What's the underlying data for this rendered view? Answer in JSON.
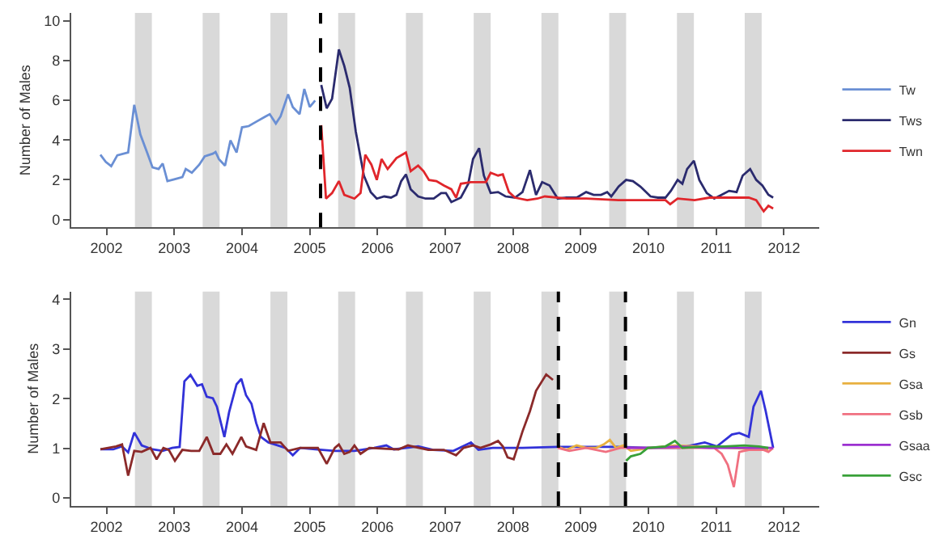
{
  "chart_data": [
    {
      "type": "line",
      "ylabel": "Number of Males",
      "xlim": [
        2001.48,
        2012.52
      ],
      "xticks": [
        2002,
        2003,
        2004,
        2005,
        2006,
        2007,
        2008,
        2009,
        2010,
        2011,
        2012
      ],
      "ylim": [
        -0.4,
        10.4
      ],
      "yticks": [
        0,
        2,
        4,
        6,
        8,
        10
      ],
      "grid": false,
      "legend": "right",
      "series": [
        {
          "name": "Tw",
          "color": "#6a8fd4",
          "x": [
            2001.91,
            2001.99,
            2002.07,
            2002.16,
            2002.32,
            2002.41,
            2002.5,
            2002.6,
            2002.68,
            2002.77,
            2002.83,
            2002.9,
            2003.0,
            2003.12,
            2003.17,
            2003.26,
            2003.37,
            2003.45,
            2003.57,
            2003.61,
            2003.66,
            2003.75,
            2003.83,
            2003.92,
            2004.0,
            2004.1,
            2004.21,
            2004.35,
            2004.41,
            2004.5,
            2004.57,
            2004.68,
            2004.75,
            2004.85,
            2004.92,
            2005.0,
            2005.08
          ],
          "values": [
            3.26,
            2.9,
            2.68,
            3.23,
            3.37,
            5.77,
            4.28,
            3.37,
            2.62,
            2.54,
            2.82,
            1.93,
            2.02,
            2.13,
            2.54,
            2.35,
            2.76,
            3.18,
            3.31,
            3.4,
            3.04,
            2.71,
            3.98,
            3.37,
            4.64,
            4.7,
            4.92,
            5.19,
            5.3,
            4.83,
            5.19,
            6.3,
            5.66,
            5.3,
            6.57,
            5.66,
            5.99
          ]
        },
        {
          "name": "Tws",
          "color": "#2b2b6e",
          "x": [
            2005.17,
            2005.25,
            2005.33,
            2005.43,
            2005.51,
            2005.59,
            2005.68,
            2005.8,
            2005.9,
            2005.99,
            2006.1,
            2006.2,
            2006.28,
            2006.35,
            2006.42,
            2006.49,
            2006.6,
            2006.71,
            2006.83,
            2006.94,
            2007.01,
            2007.09,
            2007.23,
            2007.34,
            2007.41,
            2007.5,
            2007.57,
            2007.67,
            2007.78,
            2007.89,
            2008.03,
            2008.14,
            2008.25,
            2008.34,
            2008.43,
            2008.54,
            2008.66,
            2008.79,
            2008.94,
            2009.08,
            2009.19,
            2009.3,
            2009.39,
            2009.45,
            2009.56,
            2009.67,
            2009.77,
            2009.88,
            2010.03,
            2010.14,
            2010.25,
            2010.33,
            2010.43,
            2010.5,
            2010.57,
            2010.67,
            2010.75,
            2010.86,
            2010.97,
            2011.08,
            2011.19,
            2011.3,
            2011.39,
            2011.5,
            2011.59,
            2011.68,
            2011.77,
            2011.84
          ],
          "values": [
            6.77,
            5.6,
            6.08,
            8.56,
            7.73,
            6.63,
            4.42,
            2.2,
            1.38,
            1.05,
            1.16,
            1.1,
            1.24,
            1.93,
            2.27,
            1.52,
            1.16,
            1.05,
            1.05,
            1.33,
            1.33,
            0.88,
            1.1,
            1.8,
            3.04,
            3.59,
            2.21,
            1.33,
            1.38,
            1.16,
            1.1,
            1.38,
            2.49,
            1.24,
            1.88,
            1.71,
            1.05,
            1.1,
            1.1,
            1.38,
            1.24,
            1.24,
            1.38,
            1.16,
            1.66,
            1.99,
            1.93,
            1.66,
            1.16,
            1.1,
            1.1,
            1.44,
            1.99,
            1.8,
            2.54,
            2.96,
            1.99,
            1.33,
            1.05,
            1.24,
            1.44,
            1.38,
            2.21,
            2.54,
            1.99,
            1.71,
            1.24,
            1.1
          ]
        },
        {
          "name": "Twn",
          "color": "#e0262b",
          "x": [
            2005.17,
            2005.24,
            2005.33,
            2005.43,
            2005.51,
            2005.66,
            2005.75,
            2005.82,
            2005.91,
            2005.99,
            2006.06,
            2006.15,
            2006.28,
            2006.42,
            2006.49,
            2006.6,
            2006.68,
            2006.76,
            2006.87,
            2006.98,
            2007.09,
            2007.16,
            2007.23,
            2007.38,
            2007.6,
            2007.67,
            2007.78,
            2007.85,
            2007.94,
            2008.03,
            2008.21,
            2008.36,
            2008.47,
            2008.79,
            2009.08,
            2009.56,
            2009.74,
            2010.25,
            2010.32,
            2010.43,
            2010.68,
            2010.9,
            2011.19,
            2011.48,
            2011.59,
            2011.7,
            2011.77,
            2011.84
          ],
          "values": [
            4.75,
            1.05,
            1.33,
            1.93,
            1.24,
            1.05,
            1.33,
            3.26,
            2.76,
            1.99,
            3.04,
            2.54,
            3.09,
            3.37,
            2.43,
            2.71,
            2.43,
            1.99,
            1.93,
            1.71,
            1.52,
            1.1,
            1.8,
            1.88,
            1.88,
            2.35,
            2.21,
            2.27,
            1.38,
            1.1,
            0.97,
            1.05,
            1.16,
            1.05,
            1.05,
            0.97,
            0.97,
            0.97,
            0.77,
            1.05,
            0.97,
            1.1,
            1.1,
            1.1,
            0.97,
            0.41,
            0.69,
            0.55
          ]
        }
      ],
      "bands": [
        {
          "axis": "x",
          "from": 2002.42,
          "to": 2002.67,
          "color": "#d9d9d9"
        },
        {
          "axis": "x",
          "from": 2003.42,
          "to": 2003.67,
          "color": "#d9d9d9"
        },
        {
          "axis": "x",
          "from": 2004.42,
          "to": 2004.67,
          "color": "#d9d9d9"
        },
        {
          "axis": "x",
          "from": 2005.42,
          "to": 2005.67,
          "color": "#d9d9d9"
        },
        {
          "axis": "x",
          "from": 2006.42,
          "to": 2006.67,
          "color": "#d9d9d9"
        },
        {
          "axis": "x",
          "from": 2007.42,
          "to": 2007.67,
          "color": "#d9d9d9"
        },
        {
          "axis": "x",
          "from": 2008.42,
          "to": 2008.67,
          "color": "#d9d9d9"
        },
        {
          "axis": "x",
          "from": 2009.42,
          "to": 2009.67,
          "color": "#d9d9d9"
        },
        {
          "axis": "x",
          "from": 2010.42,
          "to": 2010.67,
          "color": "#d9d9d9"
        },
        {
          "axis": "x",
          "from": 2011.42,
          "to": 2011.67,
          "color": "#d9d9d9"
        }
      ],
      "ref_lines": [
        {
          "axis": "x",
          "value": 2005.16,
          "color": "#000000",
          "line_style": "dashed"
        }
      ]
    },
    {
      "type": "line",
      "ylabel": "Number of Males",
      "xlim": [
        2001.48,
        2012.52
      ],
      "xticks": [
        2002,
        2003,
        2004,
        2005,
        2006,
        2007,
        2008,
        2009,
        2010,
        2011,
        2012
      ],
      "ylim": [
        -0.16,
        4.16
      ],
      "yticks": [
        0,
        1,
        2,
        3,
        4
      ],
      "grid": false,
      "legend": "right",
      "series": [
        {
          "name": "Gn",
          "color": "#3232d8",
          "x": [
            2001.91,
            2002.1,
            2002.23,
            2002.32,
            2002.41,
            2002.52,
            2002.68,
            2002.83,
            2002.97,
            2003.08,
            2003.15,
            2003.24,
            2003.34,
            2003.41,
            2003.48,
            2003.57,
            2003.63,
            2003.74,
            2003.81,
            2003.92,
            2003.99,
            2004.06,
            2004.14,
            2004.21,
            2004.28,
            2004.39,
            2004.53,
            2004.64,
            2004.75,
            2004.86,
            2005.08,
            2005.37,
            2005.66,
            2005.95,
            2006.13,
            2006.24,
            2006.6,
            2006.82,
            2007.12,
            2007.38,
            2007.49,
            2007.7,
            2008.14,
            2008.66,
            2009.59,
            2010.03,
            2010.46,
            2010.83,
            2011.01,
            2011.23,
            2011.34,
            2011.48,
            2011.55,
            2011.66,
            2011.73,
            2011.84
          ],
          "values": [
            0.98,
            0.98,
            1.04,
            0.92,
            1.32,
            1.06,
            0.98,
            0.95,
            1.01,
            1.03,
            2.35,
            2.48,
            2.26,
            2.29,
            2.04,
            2.01,
            1.84,
            1.23,
            1.73,
            2.29,
            2.4,
            2.07,
            1.9,
            1.51,
            1.23,
            1.12,
            1.06,
            1.01,
            0.86,
            1.01,
            0.98,
            0.95,
            0.95,
            1.01,
            1.06,
            0.98,
            1.04,
            0.97,
            0.95,
            1.12,
            0.97,
            1.01,
            1.01,
            1.03,
            1.03,
            1.01,
            1.01,
            1.12,
            1.04,
            1.28,
            1.31,
            1.23,
            1.84,
            2.16,
            1.75,
            1.01
          ]
        },
        {
          "name": "Gs",
          "color": "#8b2a2a",
          "x": [
            2001.91,
            2002.14,
            2002.23,
            2002.32,
            2002.41,
            2002.52,
            2002.65,
            2002.74,
            2002.84,
            2002.92,
            2003.01,
            2003.12,
            2003.25,
            2003.37,
            2003.48,
            2003.58,
            2003.68,
            2003.77,
            2003.86,
            2003.99,
            2004.06,
            2004.21,
            2004.32,
            2004.42,
            2004.57,
            2004.68,
            2004.86,
            2005.12,
            2005.25,
            2005.37,
            2005.43,
            2005.51,
            2005.59,
            2005.66,
            2005.75,
            2005.88,
            2006.31,
            2006.45,
            2006.75,
            2006.98,
            2007.16,
            2007.27,
            2007.41,
            2007.52,
            2007.67,
            2007.78,
            2007.85,
            2007.92,
            2008.01,
            2008.14,
            2008.25,
            2008.34,
            2008.49,
            2008.59
          ],
          "values": [
            0.98,
            1.04,
            1.08,
            0.45,
            0.95,
            0.93,
            1.01,
            0.78,
            1.01,
            0.97,
            0.75,
            0.97,
            0.95,
            0.95,
            1.23,
            0.89,
            0.89,
            1.08,
            0.89,
            1.23,
            1.04,
            0.97,
            1.51,
            1.12,
            1.12,
            0.95,
            1.01,
            1.01,
            0.69,
            1.01,
            1.08,
            0.89,
            0.93,
            1.06,
            0.89,
            1.01,
            0.98,
            1.06,
            0.97,
            0.97,
            0.86,
            1.01,
            1.06,
            1.01,
            1.08,
            1.15,
            1.04,
            0.82,
            0.78,
            1.34,
            1.75,
            2.16,
            2.49,
            2.38
          ]
        },
        {
          "name": "Gsa",
          "color": "#e8b040",
          "x": [
            2008.66,
            2008.79,
            2008.94,
            2009.08,
            2009.23,
            2009.34,
            2009.43,
            2009.52,
            2009.63,
            2009.74,
            2010.03,
            2010.39,
            2010.75,
            2011.19,
            2011.77
          ],
          "values": [
            1.03,
            0.97,
            1.06,
            1.01,
            1.01,
            1.08,
            1.17,
            1.01,
            1.06,
            0.95,
            1.01,
            1.06,
            1.04,
            1.01,
            0.97
          ]
        },
        {
          "name": "Gsb",
          "color": "#f07080",
          "x": [
            2008.66,
            2008.83,
            2009.08,
            2009.37,
            2009.59,
            2009.96,
            2010.61,
            2010.97,
            2011.08,
            2011.17,
            2011.26,
            2011.34,
            2011.48,
            2011.7,
            2011.77,
            2011.84
          ],
          "values": [
            1.01,
            0.95,
            1.01,
            0.93,
            1.01,
            1.01,
            1.01,
            1.01,
            0.89,
            0.67,
            0.22,
            0.93,
            0.97,
            0.97,
            0.93,
            1.01
          ]
        },
        {
          "name": "Gsaa",
          "color": "#9b30d0",
          "x": [
            2009.67,
            2010.03,
            2010.46,
            2010.9,
            2011.34,
            2011.84
          ],
          "values": [
            1.01,
            1.01,
            1.04,
            1.01,
            1.01,
            1.01
          ]
        },
        {
          "name": "Gsc",
          "color": "#38a038",
          "x": [
            2009.67,
            2009.74,
            2009.88,
            2009.99,
            2010.25,
            2010.39,
            2010.5,
            2010.83,
            2011.12,
            2011.41,
            2011.63,
            2011.77
          ],
          "values": [
            0.75,
            0.84,
            0.89,
            1.01,
            1.04,
            1.15,
            1.01,
            1.04,
            1.04,
            1.06,
            1.04,
            1.01
          ]
        }
      ],
      "bands": [
        {
          "axis": "x",
          "from": 2002.42,
          "to": 2002.67,
          "color": "#d9d9d9"
        },
        {
          "axis": "x",
          "from": 2003.42,
          "to": 2003.67,
          "color": "#d9d9d9"
        },
        {
          "axis": "x",
          "from": 2004.42,
          "to": 2004.67,
          "color": "#d9d9d9"
        },
        {
          "axis": "x",
          "from": 2005.42,
          "to": 2005.67,
          "color": "#d9d9d9"
        },
        {
          "axis": "x",
          "from": 2006.42,
          "to": 2006.67,
          "color": "#d9d9d9"
        },
        {
          "axis": "x",
          "from": 2007.42,
          "to": 2007.67,
          "color": "#d9d9d9"
        },
        {
          "axis": "x",
          "from": 2008.42,
          "to": 2008.67,
          "color": "#d9d9d9"
        },
        {
          "axis": "x",
          "from": 2009.42,
          "to": 2009.67,
          "color": "#d9d9d9"
        },
        {
          "axis": "x",
          "from": 2010.42,
          "to": 2010.67,
          "color": "#d9d9d9"
        },
        {
          "axis": "x",
          "from": 2011.42,
          "to": 2011.67,
          "color": "#d9d9d9"
        }
      ],
      "ref_lines": [
        {
          "axis": "x",
          "value": 2008.67,
          "color": "#000000",
          "line_style": "dashed"
        },
        {
          "axis": "x",
          "value": 2009.66,
          "color": "#000000",
          "line_style": "dashed"
        }
      ]
    }
  ]
}
